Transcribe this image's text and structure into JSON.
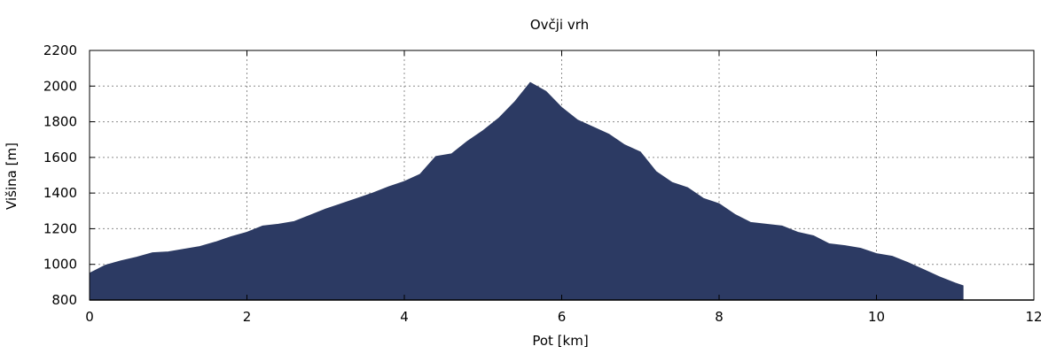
{
  "chart_data": {
    "type": "area",
    "title": "Ovčji vrh",
    "xlabel": "Pot [km]",
    "ylabel": "Višina [m]",
    "xlim": [
      0,
      12
    ],
    "ylim": [
      800,
      2200
    ],
    "xticks": [
      0,
      2,
      4,
      6,
      8,
      10,
      12
    ],
    "yticks": [
      800,
      1000,
      1200,
      1400,
      1600,
      1800,
      2000,
      2200
    ],
    "grid": true,
    "fill_color": "#2c3a63",
    "series": [
      {
        "x": [
          0,
          0.2,
          0.4,
          0.6,
          0.8,
          1.0,
          1.2,
          1.4,
          1.6,
          1.8,
          2.0,
          2.2,
          2.4,
          2.6,
          2.8,
          3.0,
          3.2,
          3.4,
          3.6,
          3.8,
          4.0,
          4.2,
          4.4,
          4.6,
          4.8,
          5.0,
          5.2,
          5.4,
          5.6,
          5.8,
          6.0,
          6.2,
          6.4,
          6.6,
          6.8,
          7.0,
          7.2,
          7.4,
          7.6,
          7.8,
          8.0,
          8.2,
          8.4,
          8.6,
          8.8,
          9.0,
          9.2,
          9.4,
          9.6,
          9.8,
          10.0,
          10.2,
          10.4,
          10.6,
          10.8,
          11.0,
          11.1
        ],
        "y": [
          950,
          995,
          1020,
          1040,
          1065,
          1070,
          1085,
          1100,
          1125,
          1155,
          1180,
          1215,
          1225,
          1240,
          1275,
          1310,
          1340,
          1370,
          1400,
          1435,
          1465,
          1505,
          1605,
          1620,
          1690,
          1750,
          1820,
          1910,
          2020,
          1970,
          1880,
          1810,
          1770,
          1730,
          1670,
          1630,
          1520,
          1460,
          1430,
          1370,
          1340,
          1280,
          1235,
          1225,
          1215,
          1180,
          1160,
          1115,
          1105,
          1090,
          1060,
          1045,
          1010,
          970,
          930,
          895,
          880
        ]
      }
    ]
  }
}
